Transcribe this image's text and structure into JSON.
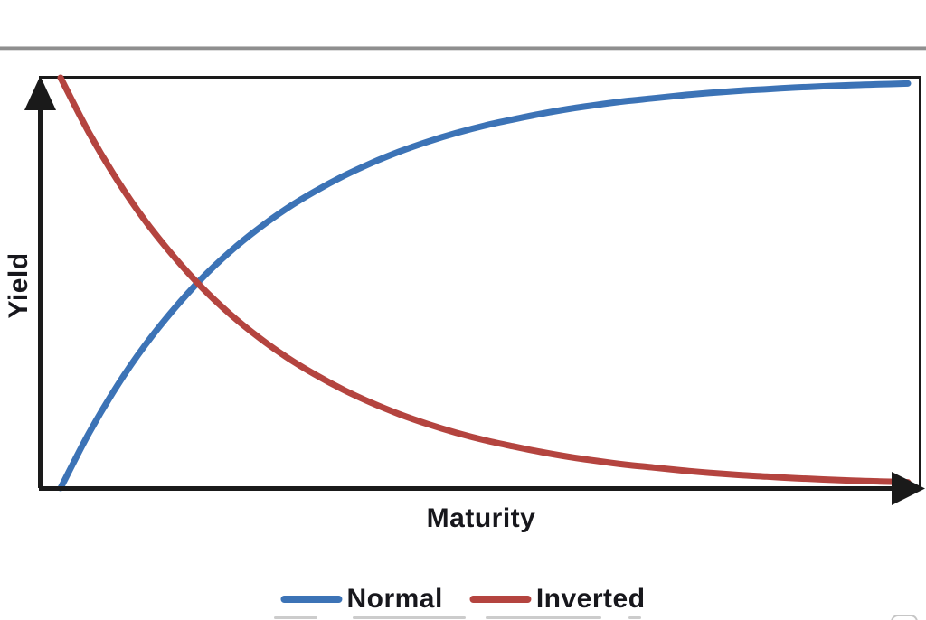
{
  "page": {
    "background": "#ffffff",
    "top_rule_color": "#8f8f8f"
  },
  "chart_data": {
    "type": "line",
    "title": "",
    "xlabel": "Maturity",
    "ylabel": "Yield",
    "x": [
      0,
      1,
      2,
      3,
      4,
      5,
      6,
      7,
      8,
      9,
      10,
      11,
      12,
      13,
      14,
      15,
      16,
      17,
      18,
      19,
      20,
      21,
      22,
      23,
      24,
      25,
      26,
      27,
      28,
      29,
      30
    ],
    "series": [
      {
        "name": "Normal",
        "color": "#3C73B6",
        "values": [
          0.0,
          0.133,
          0.249,
          0.349,
          0.435,
          0.511,
          0.576,
          0.632,
          0.681,
          0.723,
          0.76,
          0.792,
          0.82,
          0.844,
          0.865,
          0.883,
          0.898,
          0.912,
          0.924,
          0.934,
          0.943,
          0.95,
          0.957,
          0.963,
          0.968,
          0.972,
          0.976,
          0.979,
          0.982,
          0.984,
          0.986
        ]
      },
      {
        "name": "Inverted",
        "color": "#B4443F",
        "values": [
          1.0,
          0.867,
          0.751,
          0.651,
          0.565,
          0.489,
          0.424,
          0.368,
          0.319,
          0.277,
          0.24,
          0.208,
          0.18,
          0.156,
          0.135,
          0.117,
          0.102,
          0.088,
          0.076,
          0.066,
          0.057,
          0.05,
          0.043,
          0.037,
          0.032,
          0.028,
          0.024,
          0.021,
          0.018,
          0.016,
          0.014
        ]
      }
    ],
    "xlim": [
      0,
      30
    ],
    "ylim": [
      0,
      1
    ],
    "grid": false,
    "axis_ticks": "none",
    "axis_color": "#1a1a1a",
    "legend_position": "bottom"
  }
}
